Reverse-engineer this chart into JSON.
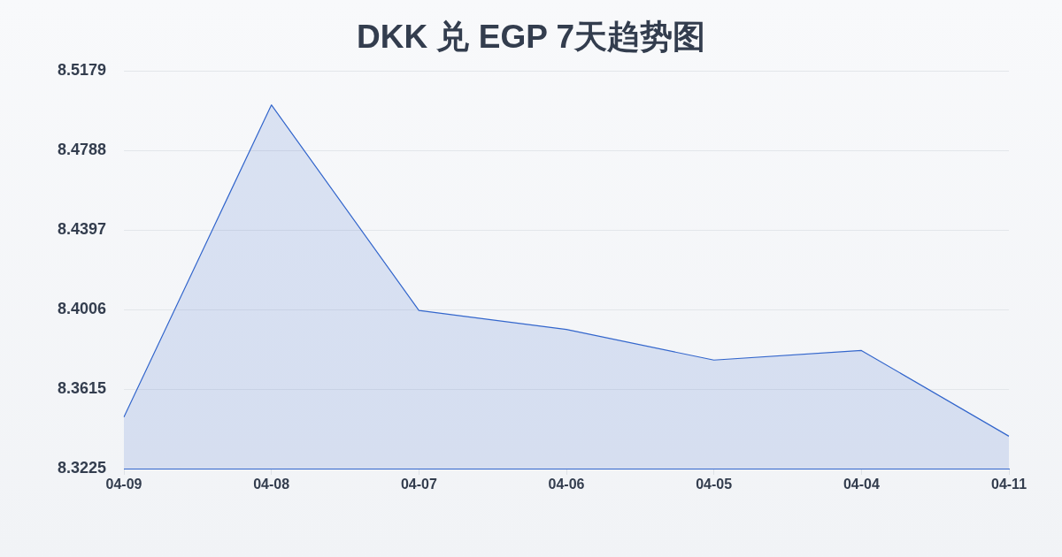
{
  "chart_data": {
    "type": "area",
    "title": "DKK 兑 EGP 7天趋势图",
    "categories": [
      "04-09",
      "04-08",
      "04-07",
      "04-06",
      "04-05",
      "04-04",
      "04-11"
    ],
    "values": [
      8.3478,
      8.5011,
      8.4002,
      8.3908,
      8.3758,
      8.3805,
      8.3384
    ],
    "color": "#3366cc",
    "ylim": [
      8.3225,
      8.5179
    ],
    "yticks": [
      8.3225,
      8.3615,
      8.4006,
      8.4397,
      8.4788,
      8.5179
    ],
    "grid": "y",
    "legend": false,
    "marker": "none",
    "line_style": "solid"
  }
}
